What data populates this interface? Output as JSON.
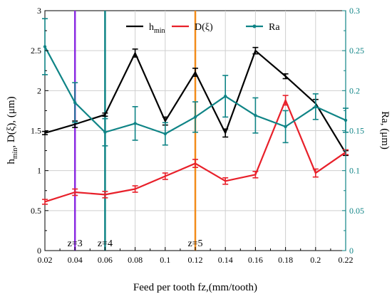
{
  "chart_data": {
    "type": "line",
    "xlabel": "Feed per tooth fz,(mm/tooth)",
    "ylabel_left": {
      "main": "h",
      "sub": "min",
      "rest": ", D(ξ), (μm)"
    },
    "ylabel_right": "Ra, (μm)",
    "x": [
      0.02,
      0.04,
      0.06,
      0.08,
      0.1,
      0.12,
      0.14,
      0.16,
      0.18,
      0.2,
      0.22
    ],
    "xlim": [
      0.02,
      0.22
    ],
    "ylim_left": [
      0,
      3
    ],
    "ylim_right": [
      0,
      0.3
    ],
    "x_ticks": [
      "0.02",
      "0.04",
      "0.06",
      "0.08",
      "0.1",
      "0.12",
      "0.14",
      "0.16",
      "0.18",
      "0.2",
      "0.22"
    ],
    "y_left_ticks": [
      "0",
      "0.5",
      "1",
      "1.5",
      "2",
      "2.5",
      "3"
    ],
    "y_right_ticks": [
      "0",
      "0.05",
      "0.1",
      "0.15",
      "0.2",
      "0.25",
      "0.3"
    ],
    "grid": true,
    "legend_position": "top-center",
    "series": [
      {
        "name": "h",
        "name_sub": "min",
        "axis": "left",
        "color": "#000000",
        "values": [
          1.47,
          1.58,
          1.7,
          2.47,
          1.62,
          2.23,
          1.47,
          2.5,
          2.18,
          1.84,
          1.22
        ],
        "errors": [
          0.02,
          0.04,
          0.02,
          0.05,
          0.05,
          0.05,
          0.05,
          0.04,
          0.03,
          0.05,
          0.03
        ],
        "marker": "none"
      },
      {
        "name": "D(ξ)",
        "axis": "left",
        "color": "#e8202a",
        "values": [
          0.61,
          0.73,
          0.7,
          0.77,
          0.93,
          1.09,
          0.87,
          0.95,
          1.88,
          0.97,
          1.23
        ],
        "errors": [
          0.03,
          0.04,
          0.04,
          0.04,
          0.04,
          0.05,
          0.04,
          0.04,
          0.06,
          0.05,
          0.03
        ],
        "marker": "none"
      },
      {
        "name": "Ra",
        "axis": "right",
        "color": "#0f8486",
        "values": [
          0.255,
          0.185,
          0.148,
          0.159,
          0.146,
          0.167,
          0.193,
          0.169,
          0.155,
          0.18,
          0.163
        ],
        "errors": [
          0.035,
          0.025,
          0.017,
          0.021,
          0.014,
          0.019,
          0.026,
          0.022,
          0.02,
          0.016,
          0.015
        ],
        "marker": "circle"
      }
    ],
    "vertical_markers": [
      {
        "x": 0.04,
        "label": "z=3",
        "color": "#8a2be2"
      },
      {
        "x": 0.06,
        "label": "z=4",
        "color": "#0f8486"
      },
      {
        "x": 0.12,
        "label": "z=5",
        "color": "#f28c1a"
      }
    ]
  }
}
